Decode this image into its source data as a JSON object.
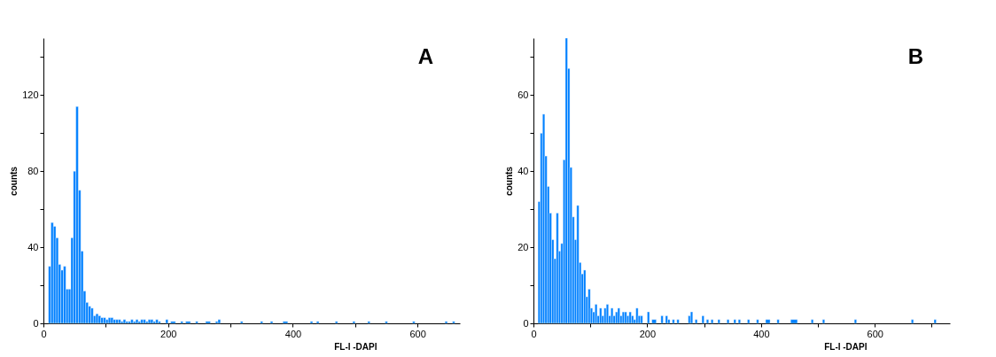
{
  "chart_data": [
    {
      "type": "histogram",
      "xlabel": "FL-I  -DAPI",
      "ylabel": "counts",
      "annotations": [
        "A"
      ],
      "color": "#0080ff",
      "grid": false,
      "xlim": [
        0,
        668
      ],
      "xticks": [
        0,
        {
          "value": 100,
          "label": null
        },
        200,
        {
          "value": 300,
          "label": null
        },
        400,
        {
          "value": 500,
          "label": null
        },
        600
      ],
      "ylim": [
        0,
        150
      ],
      "yticks": [
        0,
        {
          "value": 20,
          "label": null
        },
        40,
        {
          "value": 60,
          "label": null
        },
        80,
        {
          "value": 100,
          "label": null
        },
        120,
        {
          "value": 140,
          "label": null
        }
      ],
      "bins": [
        8,
        12,
        16,
        20,
        24,
        28,
        32,
        36,
        40,
        44,
        48,
        52,
        56,
        60,
        64,
        68,
        72,
        76,
        80,
        84,
        88,
        92,
        96,
        100,
        104,
        108,
        112,
        116,
        120,
        124,
        128,
        132,
        136,
        140,
        144,
        148,
        152,
        156,
        160,
        164,
        168,
        172,
        176,
        180,
        184,
        188,
        196,
        200,
        204,
        212,
        220,
        224,
        228,
        236,
        244,
        248,
        260,
        268,
        276,
        280,
        284,
        316,
        320,
        348,
        352,
        364,
        368,
        384,
        392,
        428,
        432,
        438,
        442,
        468,
        472,
        496,
        500,
        520,
        524,
        548,
        552,
        592,
        596,
        644,
        648,
        656,
        660
      ],
      "values": [
        30,
        53,
        51,
        45,
        31,
        28,
        30,
        18,
        18,
        45,
        80,
        114,
        70,
        38,
        17,
        11,
        9,
        8,
        4,
        5,
        4,
        3,
        3,
        2,
        3,
        3,
        2,
        2,
        2,
        1,
        2,
        1,
        1,
        2,
        1,
        2,
        1,
        2,
        2,
        1,
        2,
        2,
        1,
        2,
        1,
        0,
        2,
        0,
        1,
        0,
        1,
        0,
        1,
        0,
        1,
        0,
        1,
        0,
        1,
        2,
        0,
        1,
        0,
        1,
        0,
        1,
        0,
        1,
        0,
        1,
        0,
        1,
        0,
        1,
        0,
        1,
        0,
        1,
        0,
        1,
        0,
        1,
        0,
        1,
        0,
        1
      ]
    },
    {
      "type": "histogram",
      "xlabel": "FL-I  -DAPI",
      "ylabel": "counts",
      "annotations": [
        "B"
      ],
      "color": "#0080ff",
      "grid": false,
      "xlim": [
        0,
        732
      ],
      "xticks": [
        0,
        {
          "value": 100,
          "label": null
        },
        200,
        {
          "value": 300,
          "label": null
        },
        400,
        {
          "value": 500,
          "label": null
        },
        600,
        {
          "value": 700,
          "label": null
        }
      ],
      "ylim": [
        0,
        75
      ],
      "yticks": [
        0,
        {
          "value": 10,
          "label": null
        },
        20,
        {
          "value": 30,
          "label": null
        },
        40,
        {
          "value": 50,
          "label": null
        },
        60,
        {
          "value": 70,
          "label": null
        }
      ],
      "bins": [
        8,
        12,
        16,
        20,
        24,
        28,
        32,
        36,
        40,
        44,
        48,
        52,
        56,
        60,
        64,
        68,
        72,
        76,
        80,
        84,
        88,
        92,
        96,
        100,
        104,
        108,
        112,
        116,
        120,
        124,
        128,
        132,
        136,
        140,
        144,
        148,
        152,
        156,
        160,
        164,
        168,
        172,
        176,
        180,
        184,
        188,
        192,
        200,
        204,
        208,
        216,
        224,
        228,
        232,
        236,
        240,
        244,
        248,
        252,
        256,
        272,
        276,
        280,
        284,
        288,
        296,
        300,
        304,
        308,
        312,
        316,
        324,
        328,
        340,
        344,
        352,
        356,
        360,
        364,
        376,
        380,
        392,
        396,
        408,
        416,
        428,
        432,
        452,
        464,
        488,
        492,
        508,
        512,
        564,
        568,
        664,
        668,
        704,
        708
      ],
      "values": [
        32,
        50,
        55,
        44,
        36,
        29,
        22,
        17,
        29,
        19,
        21,
        43,
        75,
        67,
        41,
        28,
        22,
        31,
        16,
        13,
        14,
        7,
        9,
        4,
        3,
        5,
        2,
        4,
        2,
        4,
        5,
        2,
        4,
        2,
        3,
        4,
        2,
        3,
        3,
        2,
        3,
        2,
        1,
        4,
        2,
        2,
        0,
        3,
        0,
        1,
        0,
        2,
        0,
        2,
        1,
        0,
        1,
        0,
        1,
        0,
        2,
        3,
        0,
        1,
        0,
        2,
        0,
        1,
        0,
        1,
        0,
        1,
        0,
        1,
        0,
        1,
        0,
        1,
        0,
        1,
        0,
        1,
        0,
        1,
        0,
        1,
        0,
        1,
        0,
        1,
        0,
        1,
        0,
        1,
        0,
        1,
        0,
        1
      ]
    }
  ]
}
